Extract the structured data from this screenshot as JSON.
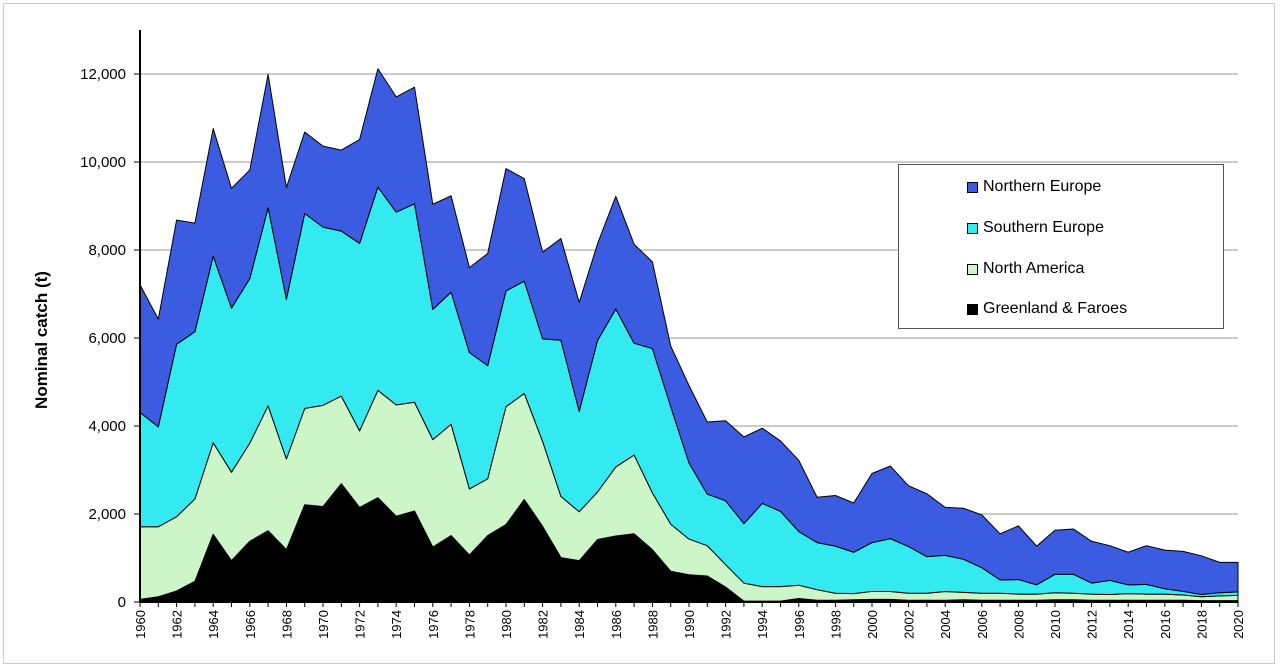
{
  "chart_data": {
    "type": "area",
    "stacked": true,
    "title": "",
    "xlabel": "",
    "ylabel": "Nominal catch (t)",
    "ylim": [
      0,
      13000
    ],
    "yticks": [
      0,
      2000,
      4000,
      6000,
      8000,
      10000,
      12000
    ],
    "ytick_labels": [
      "0",
      "2,000",
      "4,000",
      "6,000",
      "8,000",
      "10,000",
      "12,000"
    ],
    "x": [
      1960,
      1961,
      1962,
      1963,
      1964,
      1965,
      1966,
      1967,
      1968,
      1969,
      1970,
      1971,
      1972,
      1973,
      1974,
      1975,
      1976,
      1977,
      1978,
      1979,
      1980,
      1981,
      1982,
      1983,
      1984,
      1985,
      1986,
      1987,
      1988,
      1989,
      1990,
      1991,
      1992,
      1993,
      1994,
      1995,
      1996,
      1997,
      1998,
      1999,
      2000,
      2001,
      2002,
      2003,
      2004,
      2005,
      2006,
      2007,
      2008,
      2009,
      2010,
      2011,
      2012,
      2013,
      2014,
      2015,
      2016,
      2017,
      2018,
      2019,
      2020
    ],
    "xtick_labels": [
      "1960",
      "1962",
      "1964",
      "1966",
      "1968",
      "1970",
      "1972",
      "1974",
      "1976",
      "1978",
      "1980",
      "1982",
      "1984",
      "1986",
      "1988",
      "1990",
      "1992",
      "1994",
      "1996",
      "1998",
      "2000",
      "2002",
      "2004",
      "2006",
      "2008",
      "2010",
      "2012",
      "2014",
      "2016",
      "2018",
      "2020"
    ],
    "grid": true,
    "legend_position": "right",
    "series": [
      {
        "name": "Greenland & Faroes",
        "color": "#000000",
        "values": [
          60,
          120,
          250,
          470,
          1540,
          940,
          1380,
          1620,
          1190,
          2210,
          2170,
          2690,
          2150,
          2370,
          1950,
          2070,
          1250,
          1510,
          1070,
          1510,
          1760,
          2330,
          1720,
          1010,
          940,
          1420,
          1500,
          1550,
          1190,
          700,
          620,
          590,
          340,
          20,
          20,
          20,
          80,
          40,
          40,
          50,
          60,
          60,
          40,
          40,
          40,
          50,
          40,
          40,
          40,
          40,
          50,
          50,
          40,
          40,
          40,
          40,
          40,
          40,
          30,
          30,
          30
        ]
      },
      {
        "name": "North America",
        "color": "#ccf5c8",
        "values": [
          1650,
          1590,
          1690,
          1870,
          2080,
          2010,
          2230,
          2840,
          2060,
          2190,
          2300,
          1990,
          1740,
          2440,
          2530,
          2470,
          2440,
          2530,
          1500,
          1290,
          2680,
          2410,
          1930,
          1390,
          1110,
          1080,
          1570,
          1790,
          1290,
          1070,
          810,
          690,
          510,
          410,
          330,
          330,
          300,
          240,
          160,
          140,
          180,
          180,
          160,
          160,
          200,
          170,
          160,
          160,
          140,
          140,
          160,
          150,
          140,
          130,
          150,
          140,
          140,
          120,
          90,
          110,
          120
        ]
      },
      {
        "name": "Southern Europe",
        "color": "#33eaf0",
        "values": [
          2600,
          2270,
          3920,
          3800,
          4240,
          3730,
          3740,
          4500,
          3630,
          4430,
          4050,
          3750,
          4260,
          4620,
          4380,
          4510,
          2960,
          3000,
          3100,
          2570,
          2630,
          2550,
          2330,
          3550,
          2280,
          3440,
          3590,
          2540,
          3280,
          2670,
          1730,
          1170,
          1450,
          1350,
          1890,
          1710,
          1220,
          1070,
          1070,
          940,
          1110,
          1200,
          1060,
          830,
          820,
          750,
          580,
          300,
          330,
          210,
          420,
          430,
          250,
          320,
          200,
          220,
          120,
          80,
          50,
          70,
          80
        ]
      },
      {
        "name": "Northern Europe",
        "color": "#3b5be0",
        "values": [
          2900,
          2450,
          2820,
          2470,
          2900,
          2720,
          2470,
          3030,
          2540,
          1850,
          1840,
          1840,
          2360,
          2690,
          2620,
          2650,
          2390,
          2190,
          1930,
          2550,
          2780,
          2330,
          1970,
          2310,
          2480,
          2200,
          2560,
          2250,
          1970,
          1380,
          1760,
          1640,
          1820,
          1970,
          1710,
          1600,
          1620,
          1030,
          1150,
          1120,
          1570,
          1650,
          1380,
          1430,
          1090,
          1160,
          1200,
          1050,
          1220,
          880,
          1000,
          1030,
          950,
          790,
          740,
          880,
          880,
          910,
          880,
          690,
          670
        ]
      }
    ]
  },
  "legend": {
    "items": [
      {
        "label": "Northern Europe",
        "color": "#3b5be0"
      },
      {
        "label": "Southern Europe",
        "color": "#33eaf0"
      },
      {
        "label": "North America",
        "color": "#ccf5c8"
      },
      {
        "label": "Greenland & Faroes",
        "color": "#000000"
      }
    ]
  }
}
